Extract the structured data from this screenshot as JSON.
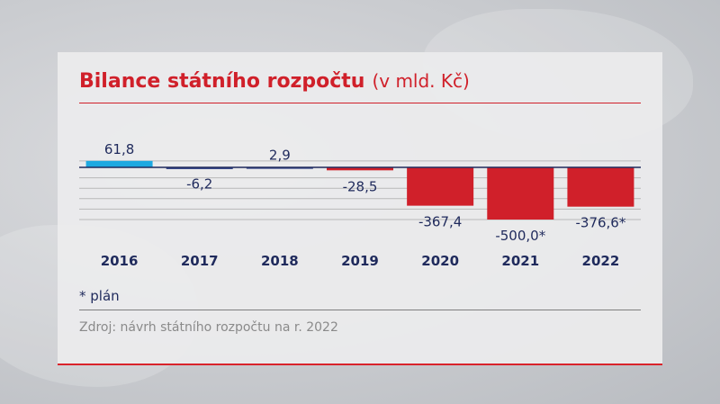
{
  "chart_data": {
    "type": "bar",
    "title": "Bilance státního rozpočtu",
    "subtitle": "(v mld. Kč)",
    "categories": [
      "2016",
      "2017",
      "2018",
      "2019",
      "2020",
      "2021",
      "2022"
    ],
    "values": [
      61.8,
      -6.2,
      2.9,
      -28.5,
      -367.4,
      -500.0,
      -376.6
    ],
    "value_labels": [
      "61,8",
      "-6,2",
      "2,9",
      "-28,5",
      "-367,4",
      "-500,0*",
      "-376,6*"
    ],
    "ylim": [
      -500,
      61.8
    ],
    "grid": true,
    "colors": {
      "positive": "#1ea9e1",
      "negative": "#d0202a",
      "small_negative": "#3a4a8c",
      "label": "#1f2a5c",
      "grid": "#b8b8b8",
      "axis": "#1f2a5c"
    }
  },
  "footnote": "* plán",
  "source": "Zdroj: návrh státního rozpočtu na r. 2022"
}
